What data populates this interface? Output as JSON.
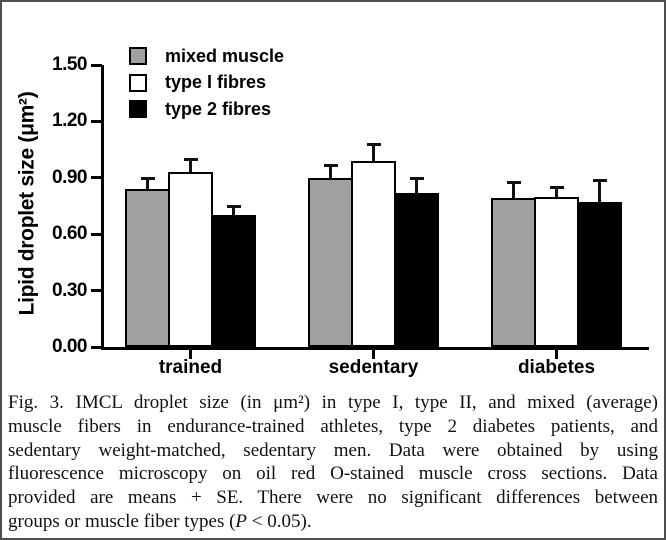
{
  "chart_data": {
    "type": "bar",
    "title": "",
    "xlabel": "",
    "ylabel": "Lipid droplet size (μm²)",
    "ylim": [
      0,
      1.5
    ],
    "yticks": [
      0,
      0.3,
      0.6,
      0.9,
      1.2,
      1.5
    ],
    "ytick_labels": [
      "0.00",
      "0.30",
      "0.60",
      "0.90",
      "1.20",
      "1.50"
    ],
    "categories": [
      "trained",
      "sedentary",
      "diabetes"
    ],
    "series": [
      {
        "name": "mixed muscle",
        "color": "#a0a0a0",
        "values": [
          0.84,
          0.9,
          0.79
        ],
        "se": [
          0.06,
          0.07,
          0.09
        ]
      },
      {
        "name": "type I fibres",
        "color": "#ffffff",
        "values": [
          0.93,
          0.99,
          0.8
        ],
        "se": [
          0.07,
          0.09,
          0.05
        ]
      },
      {
        "name": "type 2 fibres",
        "color": "#000000",
        "values": [
          0.7,
          0.82,
          0.77
        ],
        "se": [
          0.05,
          0.08,
          0.12
        ]
      }
    ],
    "legend_position": "top-left",
    "grid": false,
    "error_style": "means + SE, T caps"
  },
  "caption": {
    "lines": [
      "Fig. 3. IMCL droplet size (in μm²) in type I, type II, and mixed (average)",
      "muscle fibers in endurance-trained athletes, type 2 diabetes patients, and",
      "sedentary weight-matched, sedentary men. Data were obtained by using",
      "fluorescence microscopy on oil red O-stained muscle cross sections. Data",
      "provided are means + SE. There were no significant differences between"
    ],
    "last_line": {
      "pre": "groups or muscle fiber types (",
      "italic": "P",
      "post": " < 0.05)."
    }
  }
}
